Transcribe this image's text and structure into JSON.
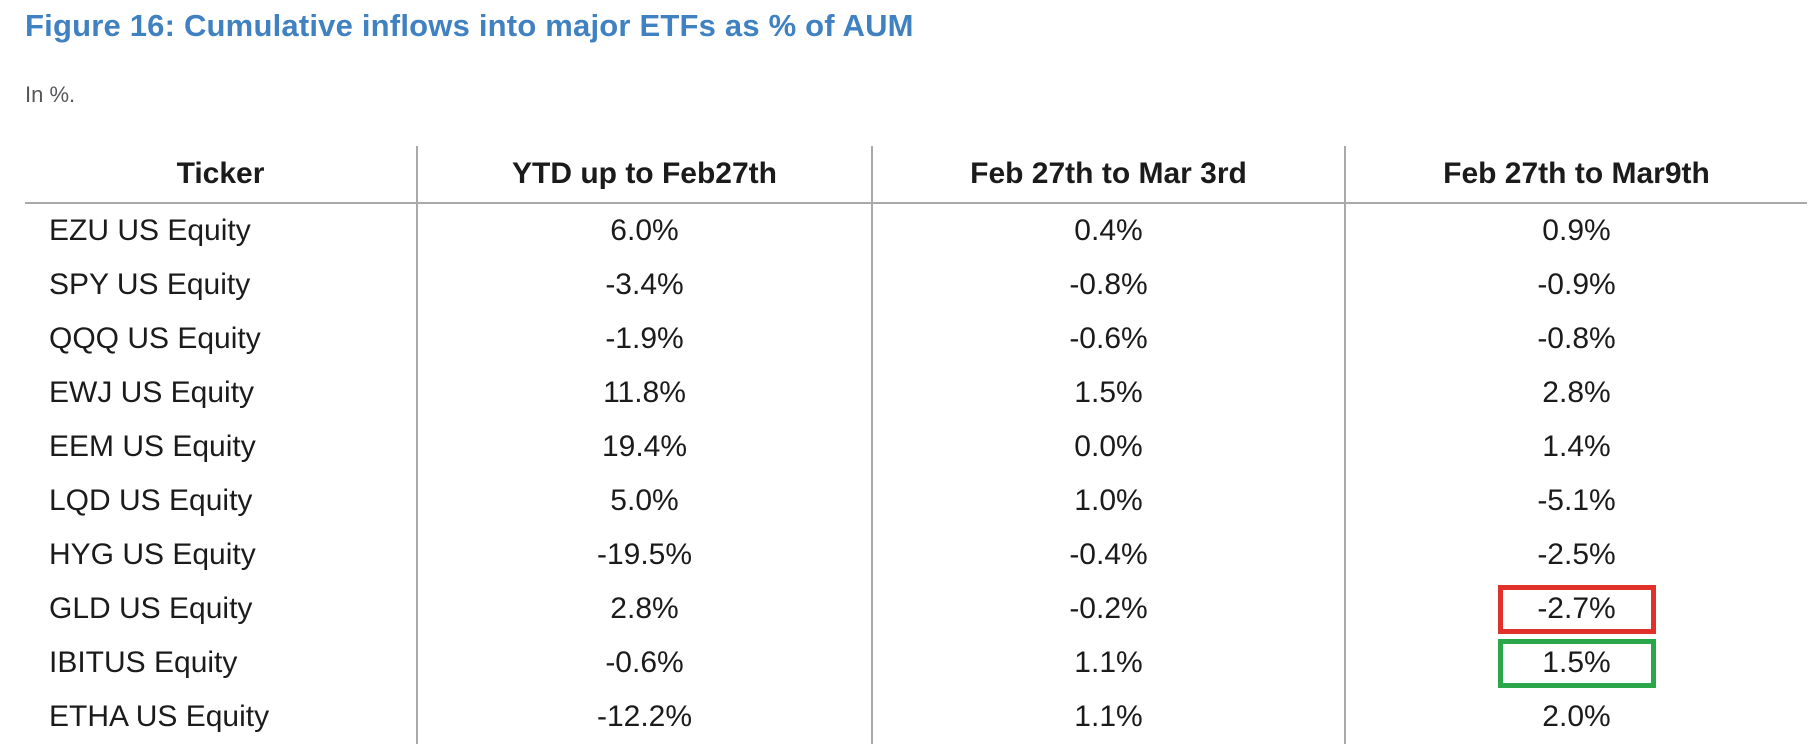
{
  "figure": {
    "title": "Figure 16: Cumulative inflows into major ETFs as % of AUM",
    "subtitle": "In %."
  },
  "table": {
    "headers": [
      "Ticker",
      "YTD up to Feb27th",
      "Feb 27th to Mar 3rd",
      "Feb 27th to Mar9th"
    ],
    "rows": [
      {
        "ticker": "EZU US Equity",
        "ytd": "6.0%",
        "mar3": "0.4%",
        "mar9": "0.9%"
      },
      {
        "ticker": "SPY US Equity",
        "ytd": "-3.4%",
        "mar3": "-0.8%",
        "mar9": "-0.9%"
      },
      {
        "ticker": "QQQ US Equity",
        "ytd": "-1.9%",
        "mar3": "-0.6%",
        "mar9": "-0.8%"
      },
      {
        "ticker": "EWJ US Equity",
        "ytd": "11.8%",
        "mar3": "1.5%",
        "mar9": "2.8%"
      },
      {
        "ticker": "EEM US Equity",
        "ytd": "19.4%",
        "mar3": "0.0%",
        "mar9": "1.4%"
      },
      {
        "ticker": "LQD US Equity",
        "ytd": "5.0%",
        "mar3": "1.0%",
        "mar9": "-5.1%"
      },
      {
        "ticker": "HYG US Equity",
        "ytd": "-19.5%",
        "mar3": "-0.4%",
        "mar9": "-2.5%"
      },
      {
        "ticker": "GLD US Equity",
        "ytd": "2.8%",
        "mar3": "-0.2%",
        "mar9": "-2.7%"
      },
      {
        "ticker": "IBITUS Equity",
        "ytd": "-0.6%",
        "mar3": "1.1%",
        "mar9": "1.5%"
      },
      {
        "ticker": "ETHA US Equity",
        "ytd": "-12.2%",
        "mar3": "1.1%",
        "mar9": "2.0%"
      }
    ]
  },
  "highlights": [
    {
      "ticker": "GLD US Equity",
      "column": "Feb 27th to Mar9th",
      "value": "-2.7%",
      "box_color": "red"
    },
    {
      "ticker": "IBITUS Equity",
      "column": "Feb 27th to Mar9th",
      "value": "1.5%",
      "box_color": "green"
    }
  ],
  "colors": {
    "title_blue": "#3f81c1",
    "highlight_red": "#e0322b",
    "highlight_green": "#29a74a",
    "grid_gray": "#a9a9a9"
  },
  "chart_data": {
    "type": "table",
    "title": "Figure 16: Cumulative inflows into major ETFs as % of AUM",
    "unit": "%",
    "columns": [
      "Ticker",
      "YTD up to Feb27th",
      "Feb 27th to Mar 3rd",
      "Feb 27th to Mar9th"
    ],
    "rows": [
      [
        "EZU US Equity",
        6.0,
        0.4,
        0.9
      ],
      [
        "SPY US Equity",
        -3.4,
        -0.8,
        -0.9
      ],
      [
        "QQQ US Equity",
        -1.9,
        -0.6,
        -0.8
      ],
      [
        "EWJ US Equity",
        11.8,
        1.5,
        2.8
      ],
      [
        "EEM US Equity",
        19.4,
        0.0,
        1.4
      ],
      [
        "LQD US Equity",
        5.0,
        1.0,
        -5.1
      ],
      [
        "HYG US Equity",
        -19.5,
        -0.4,
        -2.5
      ],
      [
        "GLD US Equity",
        2.8,
        -0.2,
        -2.7
      ],
      [
        "IBITUS Equity",
        -0.6,
        1.1,
        1.5
      ],
      [
        "ETHA US Equity",
        -12.2,
        1.1,
        2.0
      ]
    ],
    "annotations": [
      {
        "cell": [
          "GLD US Equity",
          "Feb 27th to Mar9th"
        ],
        "style": "red-box"
      },
      {
        "cell": [
          "IBITUS Equity",
          "Feb 27th to Mar9th"
        ],
        "style": "green-box"
      }
    ]
  }
}
